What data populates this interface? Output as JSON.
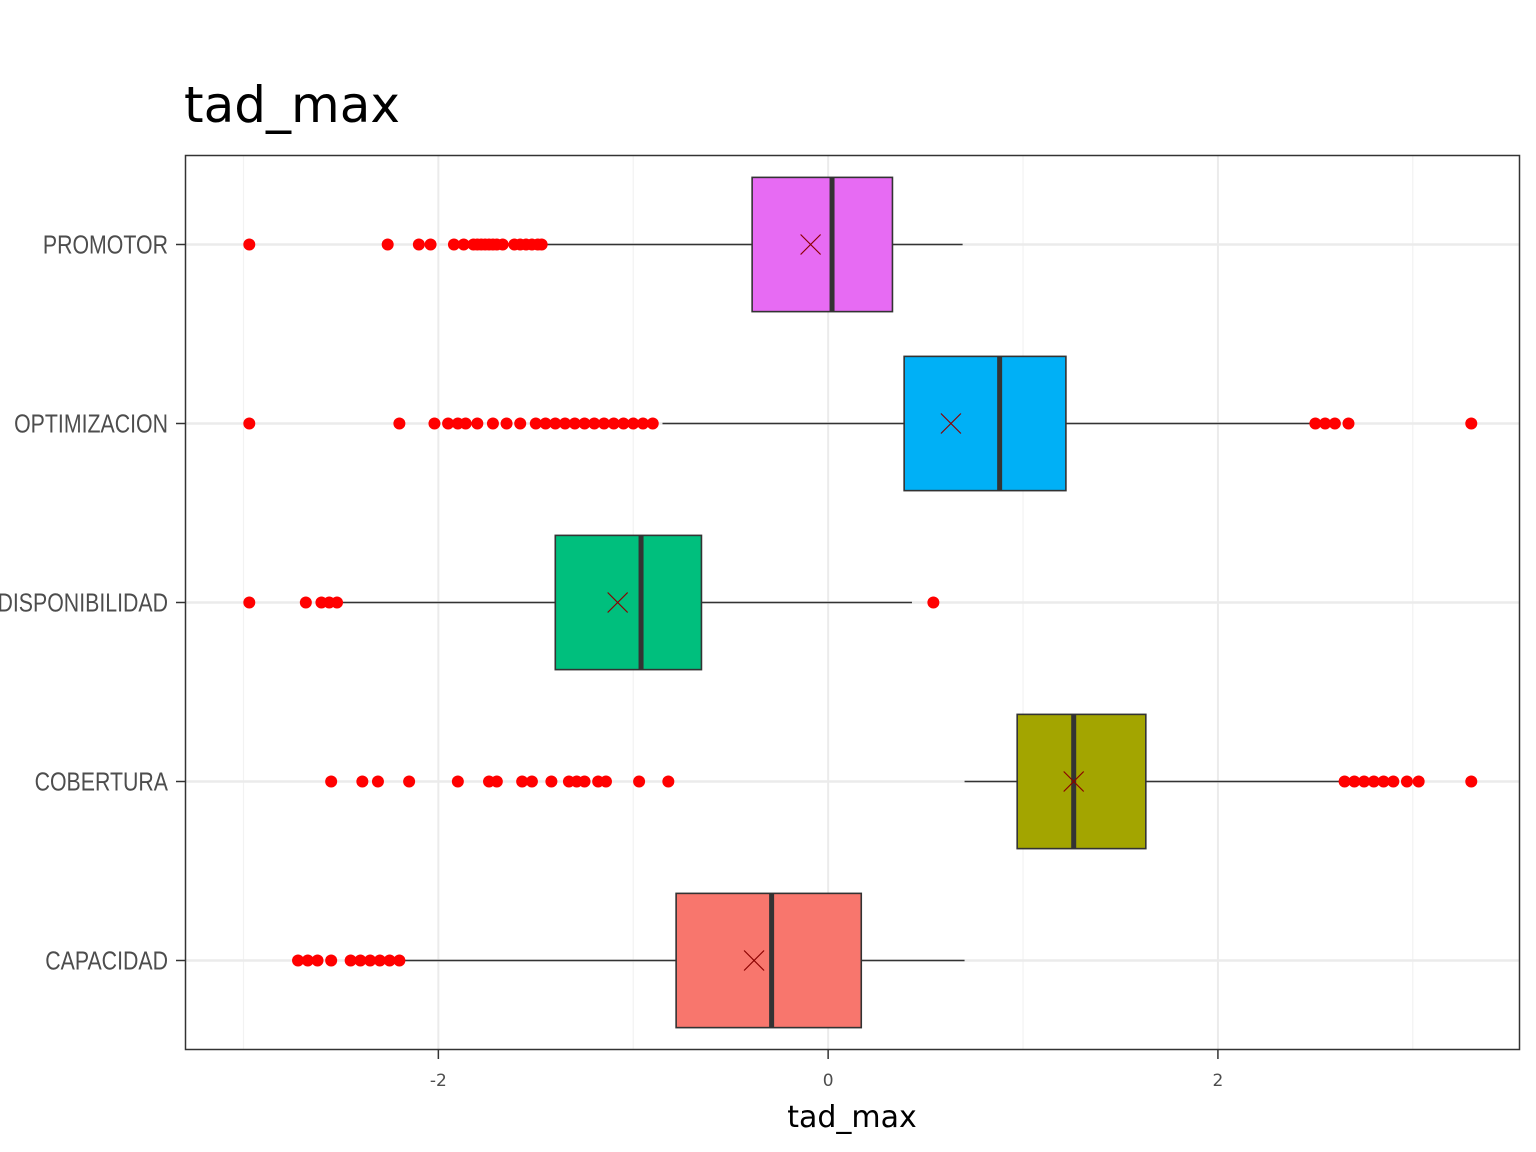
{
  "chart_data": {
    "type": "boxplot",
    "title": "tad_max",
    "xlabel": "tad_max",
    "ylabel": "",
    "xlim": [
      -3.3,
      3.55
    ],
    "xticks": [
      -2,
      0,
      2
    ],
    "xtick_labels": [
      "-2",
      "0",
      "2"
    ],
    "grid": true,
    "legend": "none",
    "outlier_color": "#ff0000",
    "mean_marker": "x",
    "categories": [
      "PROMOTOR",
      "OPTIMIZACION",
      "DISPONIBILIDAD",
      "COBERTURA",
      "CAPACIDAD"
    ],
    "series": [
      {
        "category": "PROMOTOR",
        "color": "#e76bf3",
        "whisker_low": -1.45,
        "q1": -0.39,
        "median": 0.02,
        "q3": 0.33,
        "whisker_high": 0.69,
        "mean": -0.09,
        "outliers": [
          -2.97,
          -2.26,
          -2.1,
          -2.04,
          -1.92,
          -1.87,
          -1.82,
          -1.8,
          -1.78,
          -1.76,
          -1.74,
          -1.72,
          -1.7,
          -1.67,
          -1.61,
          -1.58,
          -1.55,
          -1.52,
          -1.49,
          -1.47
        ]
      },
      {
        "category": "OPTIMIZACION",
        "color": "#00b0f6",
        "whisker_low": -0.85,
        "q1": 0.39,
        "median": 0.88,
        "q3": 1.22,
        "whisker_high": 2.47,
        "mean": 0.63,
        "outliers": [
          -2.97,
          -2.2,
          -2.02,
          -1.95,
          -1.9,
          -1.86,
          -1.8,
          -1.72,
          -1.65,
          -1.58,
          -1.5,
          -1.45,
          -1.4,
          -1.35,
          -1.3,
          -1.25,
          -1.2,
          -1.15,
          -1.1,
          -1.05,
          -1.0,
          -0.95,
          -0.9,
          2.5,
          2.55,
          2.6,
          2.67,
          3.3
        ]
      },
      {
        "category": "DISPONIBILIDAD",
        "color": "#00bf7d",
        "whisker_low": -2.5,
        "q1": -1.4,
        "median": -0.96,
        "q3": -0.65,
        "whisker_high": 0.43,
        "mean": -1.08,
        "outliers": [
          -2.97,
          -2.68,
          -2.6,
          -2.56,
          -2.52,
          0.54
        ]
      },
      {
        "category": "COBERTURA",
        "color": "#a3a500",
        "whisker_low": 0.7,
        "q1": 0.97,
        "median": 1.26,
        "q3": 1.63,
        "whisker_high": 2.63,
        "mean": 1.26,
        "outliers": [
          -2.55,
          -2.39,
          -2.31,
          -2.15,
          -1.9,
          -1.74,
          -1.7,
          -1.57,
          -1.52,
          -1.42,
          -1.33,
          -1.29,
          -1.25,
          -1.18,
          -1.14,
          -0.97,
          -0.82,
          2.65,
          2.7,
          2.75,
          2.8,
          2.85,
          2.9,
          2.97,
          3.03,
          3.3
        ]
      },
      {
        "category": "CAPACIDAD",
        "color": "#f8766d",
        "whisker_low": -2.18,
        "q1": -0.78,
        "median": -0.29,
        "q3": 0.17,
        "whisker_high": 0.7,
        "mean": -0.38,
        "outliers": [
          -2.72,
          -2.67,
          -2.62,
          -2.55,
          -2.45,
          -2.4,
          -2.35,
          -2.3,
          -2.25,
          -2.2
        ]
      }
    ]
  }
}
